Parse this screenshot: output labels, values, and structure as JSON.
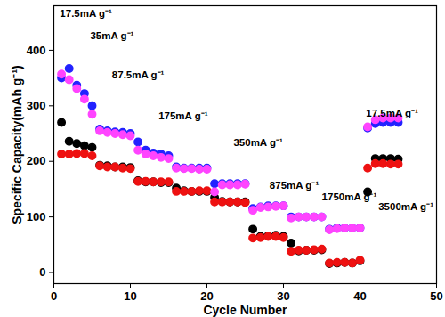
{
  "chart_data": {
    "type": "scatter",
    "x_label": "Cycle Number",
    "y_label": "Specific Capacity(mAh g⁻¹)",
    "x": [
      1,
      2,
      3,
      4,
      5,
      6,
      7,
      8,
      9,
      10,
      11,
      12,
      13,
      14,
      15,
      16,
      17,
      18,
      19,
      20,
      21,
      22,
      23,
      24,
      25,
      26,
      27,
      28,
      29,
      30,
      31,
      32,
      33,
      34,
      35,
      36,
      37,
      38,
      39,
      40,
      41,
      42,
      43,
      44,
      45
    ],
    "series": [
      {
        "color": "#000000",
        "marker": "circle",
        "values": [
          270,
          236,
          232,
          228,
          225,
          193,
          192,
          190,
          190,
          189,
          165,
          163,
          163,
          162,
          162,
          152,
          147,
          146,
          146,
          146,
          135,
          128,
          127,
          127,
          127,
          78,
          65,
          66,
          67,
          65,
          53,
          39,
          40,
          40,
          41,
          16,
          17,
          18,
          17,
          21,
          145,
          205,
          205,
          205,
          204
        ]
      },
      {
        "color": "#ee1111",
        "marker": "circle",
        "values": [
          213,
          213,
          214,
          214,
          210,
          192,
          190,
          190,
          188,
          187,
          164,
          164,
          163,
          163,
          163,
          146,
          146,
          146,
          147,
          147,
          127,
          127,
          127,
          127,
          126,
          62,
          63,
          65,
          65,
          63,
          38,
          40,
          40,
          41,
          42,
          17,
          18,
          18,
          17,
          22,
          188,
          196,
          196,
          195,
          195
        ]
      },
      {
        "color": "#2222ff",
        "marker": "circle",
        "values": [
          350,
          367,
          337,
          322,
          300,
          258,
          255,
          253,
          252,
          250,
          235,
          220,
          215,
          213,
          210,
          190,
          188,
          188,
          188,
          188,
          160,
          160,
          160,
          160,
          160,
          115,
          118,
          120,
          120,
          120,
          100,
          100,
          100,
          100,
          100,
          78,
          80,
          80,
          80,
          80,
          260,
          268,
          270,
          270,
          270
        ]
      },
      {
        "color": "#ff44ff",
        "marker": "circle",
        "values": [
          357,
          347,
          331,
          312,
          285,
          255,
          252,
          250,
          248,
          246,
          220,
          213,
          210,
          207,
          205,
          188,
          187,
          187,
          186,
          186,
          145,
          158,
          158,
          158,
          159,
          112,
          117,
          118,
          119,
          120,
          98,
          100,
          100,
          100,
          100,
          77,
          79,
          80,
          80,
          80,
          262,
          275,
          278,
          278,
          278
        ]
      }
    ],
    "annotations": [
      {
        "text": "17.5mA g⁻¹",
        "x": 4.2,
        "y": 466
      },
      {
        "text": "35mA g⁻¹",
        "x": 7.6,
        "y": 426
      },
      {
        "text": "87.5mA g⁻¹",
        "x": 11,
        "y": 356
      },
      {
        "text": "175mA g⁻¹",
        "x": 16.9,
        "y": 282
      },
      {
        "text": "350mA g⁻¹",
        "x": 26.7,
        "y": 234
      },
      {
        "text": "875mA g⁻¹",
        "x": 31.4,
        "y": 156
      },
      {
        "text": "1750mA g⁻¹",
        "x": 38.6,
        "y": 136
      },
      {
        "text": "3500mA g⁻¹",
        "x": 46,
        "y": 118
      },
      {
        "text": "17.5mA g⁻¹",
        "x": 44.2,
        "y": 287
      }
    ],
    "xlim": [
      0,
      50
    ],
    "xticks": [
      0,
      10,
      20,
      30,
      40,
      50
    ],
    "ylim": [
      -20,
      480
    ],
    "yticks": [
      0,
      100,
      200,
      300,
      400
    ],
    "grid": false
  }
}
